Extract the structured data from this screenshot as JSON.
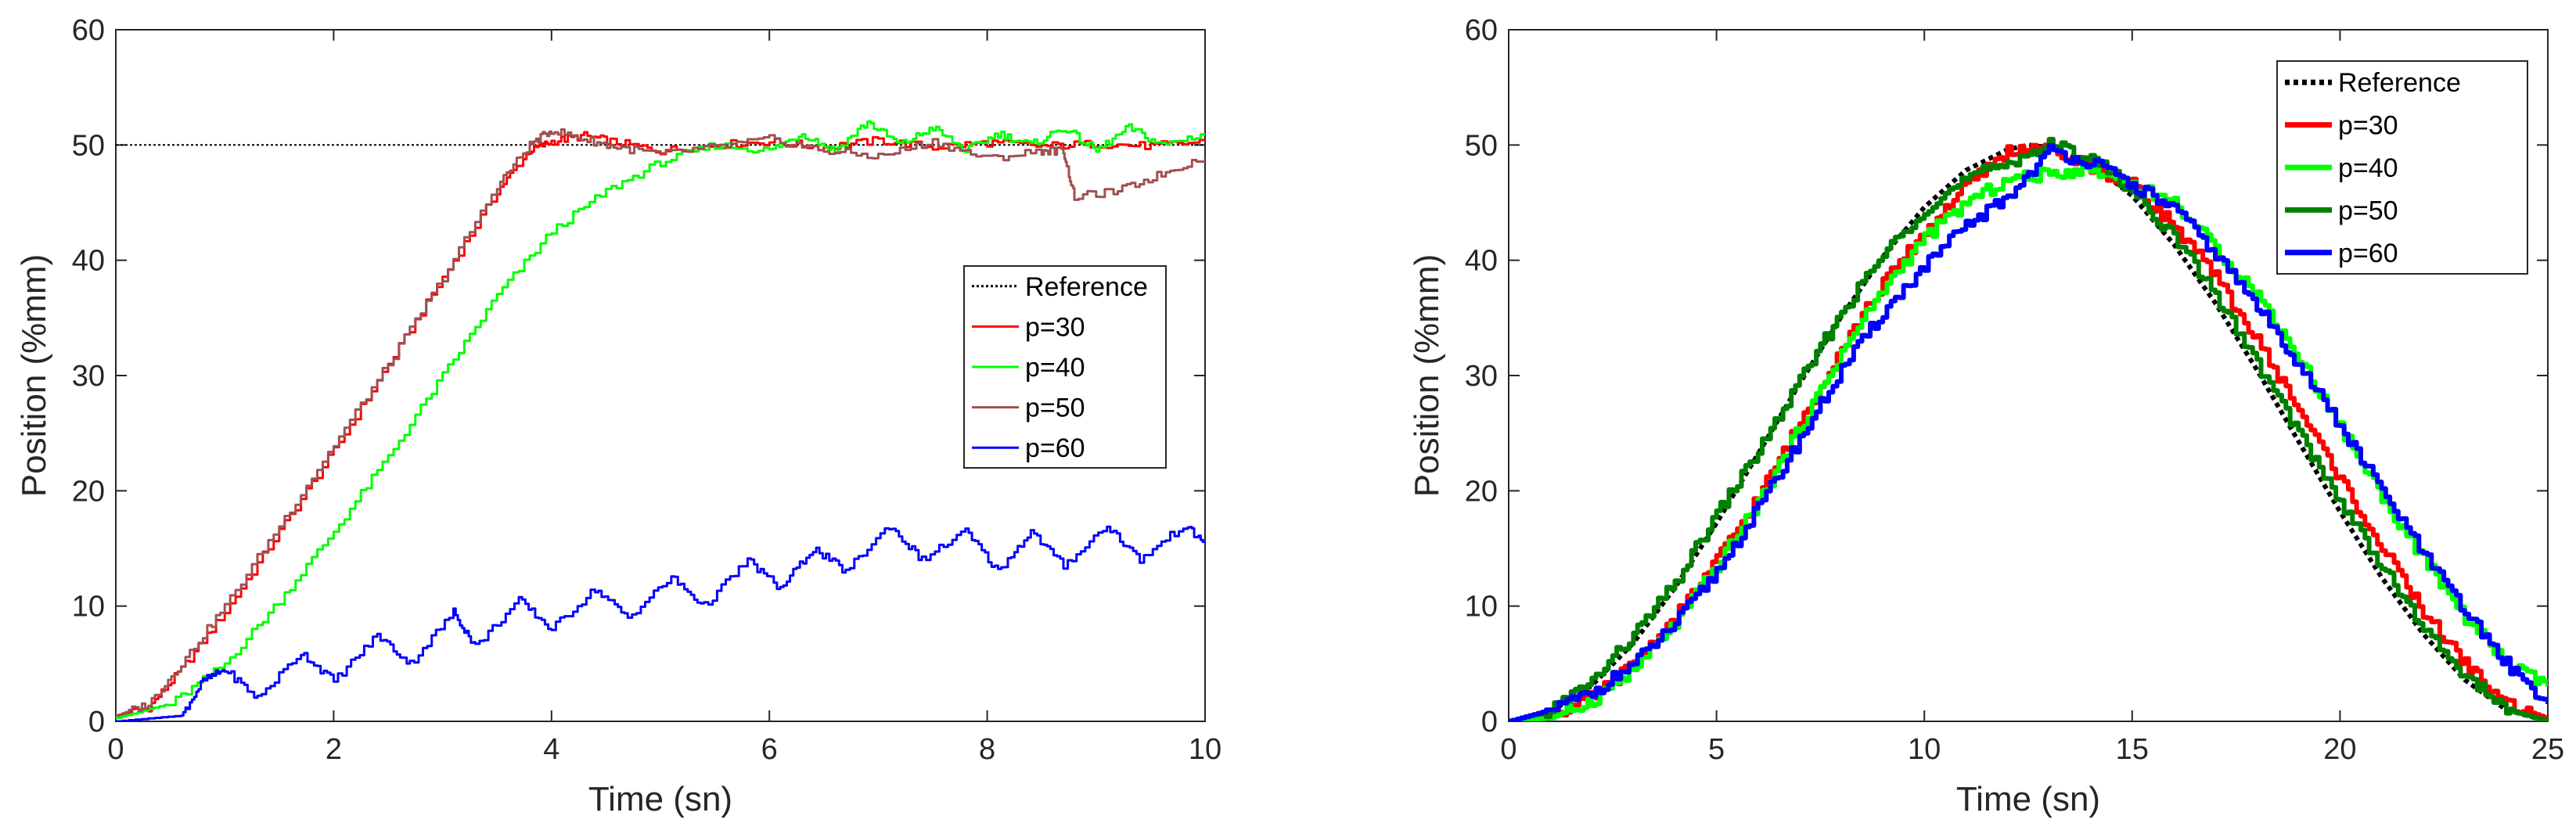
{
  "chart_data": [
    {
      "type": "line",
      "title": "",
      "xlabel": "Time (sn)",
      "ylabel": "Position (%mm)",
      "xlim": [
        0,
        10
      ],
      "ylim": [
        0,
        60
      ],
      "xticks": [
        0,
        2,
        4,
        6,
        8,
        10
      ],
      "yticks": [
        0,
        10,
        20,
        30,
        40,
        50,
        60
      ],
      "legend_position": "center-right",
      "series": [
        {
          "name": "Reference",
          "color": "#000000",
          "style": "dotted",
          "x": [
            0,
            10
          ],
          "y": [
            50,
            50
          ]
        },
        {
          "name": "p=30",
          "color": "#ff0000",
          "style": "solid",
          "x": [
            0,
            0.3,
            0.6,
            1.0,
            1.5,
            2.0,
            2.5,
            3.0,
            3.5,
            3.8,
            4.0,
            4.3,
            4.6,
            5.0,
            5.5,
            6.0,
            6.5,
            7.0,
            7.5,
            8.0,
            8.5,
            9.0,
            9.5,
            10.0
          ],
          "y": [
            0.5,
            1.2,
            4.5,
            9.5,
            16.5,
            23.5,
            31,
            38.5,
            46,
            49.5,
            50.3,
            50.8,
            50.2,
            49.5,
            50.0,
            50.3,
            49.8,
            50.4,
            49.8,
            50.2,
            49.9,
            50.1,
            49.9,
            50.3
          ]
        },
        {
          "name": "p=40",
          "color": "#00ff00",
          "style": "solid",
          "x": [
            0,
            0.5,
            1.0,
            1.5,
            2.0,
            2.5,
            3.0,
            3.5,
            4.0,
            4.5,
            5.0,
            5.5,
            6.0,
            6.3,
            6.6,
            6.9,
            7.2,
            7.5,
            7.8,
            8.1,
            8.4,
            8.7,
            9.0,
            9.3,
            9.6,
            10.0
          ],
          "y": [
            0.3,
            1.5,
            5,
            10.5,
            16.5,
            23,
            30,
            37,
            42.5,
            46,
            48.5,
            50,
            49.5,
            51,
            49.5,
            52,
            50,
            51.5,
            49.5,
            51,
            50,
            51.5,
            49.5,
            51.5,
            50,
            51
          ]
        },
        {
          "name": "p=50",
          "color": "#a05050",
          "style": "solid",
          "x": [
            0,
            0.3,
            0.6,
            1.0,
            1.5,
            2.0,
            2.5,
            3.0,
            3.5,
            3.8,
            4.0,
            4.3,
            4.6,
            5.0,
            5.5,
            6.0,
            6.5,
            7.0,
            7.5,
            8.0,
            8.5,
            8.7,
            8.8,
            9.2,
            9.6,
            10.0
          ],
          "y": [
            0.5,
            1.5,
            5,
            10,
            17,
            24,
            31,
            38.5,
            46.5,
            50,
            51.3,
            50.5,
            49.8,
            49.2,
            49.8,
            50.5,
            49.5,
            49.0,
            50.3,
            48.8,
            49.5,
            49.5,
            45.5,
            46,
            47.5,
            49
          ]
        },
        {
          "name": "p=60",
          "color": "#0000ff",
          "style": "solid",
          "x": [
            0,
            0.6,
            0.8,
            1.0,
            1.3,
            1.7,
            2.0,
            2.4,
            2.7,
            3.1,
            3.3,
            3.7,
            4.0,
            4.4,
            4.7,
            5.1,
            5.4,
            5.8,
            6.1,
            6.4,
            6.7,
            7.1,
            7.4,
            7.8,
            8.1,
            8.4,
            8.7,
            9.1,
            9.4,
            9.8,
            10.0
          ],
          "y": [
            0,
            0.5,
            3.5,
            4.5,
            2,
            6,
            3.5,
            7.5,
            5,
            9.5,
            6.5,
            10.5,
            8,
            11.5,
            9,
            12.5,
            10,
            14,
            11.5,
            15,
            13,
            17,
            14,
            16.5,
            13,
            16.5,
            13.5,
            17,
            14,
            17,
            15.5
          ]
        }
      ]
    },
    {
      "type": "line",
      "title": "",
      "xlabel": "Time (sn)",
      "ylabel": "Position (%mm)",
      "xlim": [
        0,
        25
      ],
      "ylim": [
        0,
        60
      ],
      "xticks": [
        0,
        5,
        10,
        15,
        20,
        25
      ],
      "yticks": [
        0,
        10,
        20,
        30,
        40,
        50,
        60
      ],
      "legend_position": "top-right",
      "series": [
        {
          "name": "Reference",
          "color": "#000000",
          "style": "dotted",
          "x": [
            0,
            1,
            2,
            3,
            4,
            5,
            6,
            7,
            8,
            9,
            10,
            11,
            12,
            12.5,
            13,
            14,
            15,
            16,
            17,
            18,
            19,
            20,
            21,
            22,
            23,
            24,
            25
          ],
          "y": [
            0,
            0.8,
            3.1,
            6.8,
            11.6,
            17.2,
            23.2,
            29.3,
            35.1,
            40.3,
            44.6,
            47.8,
            49.6,
            50,
            49.8,
            48.4,
            45.6,
            41.4,
            36.3,
            30.5,
            24.3,
            18.2,
            12.5,
            7.6,
            3.6,
            1.0,
            0
          ]
        },
        {
          "name": "p=30",
          "color": "#ff0000",
          "style": "solid",
          "x": [
            0,
            1,
            2,
            3,
            4,
            5,
            6,
            7,
            8,
            9,
            10,
            11,
            12,
            13,
            14,
            15,
            16,
            17,
            18,
            19,
            20,
            21,
            22,
            23,
            24,
            25
          ],
          "y": [
            0,
            0.5,
            2,
            5,
            9,
            14,
            19.5,
            26,
            32.5,
            38,
            42.5,
            46.5,
            49.5,
            49.5,
            48,
            46.5,
            43,
            38.5,
            33,
            27,
            21,
            15,
            9.5,
            5,
            1.5,
            0.2
          ]
        },
        {
          "name": "p=40",
          "color": "#00ff00",
          "style": "solid",
          "x": [
            0,
            1,
            2,
            3,
            4,
            5,
            6,
            7,
            8,
            9,
            10,
            11,
            12,
            13,
            14,
            15,
            16,
            17,
            18,
            19,
            20,
            21,
            22,
            23,
            24,
            25
          ],
          "y": [
            0,
            0.3,
            1.8,
            4.5,
            8.5,
            13.5,
            19,
            25.5,
            32,
            37.5,
            42,
            45,
            47,
            47.5,
            48,
            46.5,
            45,
            41,
            37,
            31.5,
            25.5,
            19.5,
            14,
            9,
            5,
            3
          ]
        },
        {
          "name": "p=50",
          "color": "#008000",
          "style": "solid",
          "x": [
            0,
            1,
            2,
            3,
            4,
            5,
            6,
            7,
            8,
            9,
            10,
            11,
            12,
            13,
            14,
            15,
            16,
            17,
            18,
            19,
            20,
            21,
            22,
            23,
            24,
            25
          ],
          "y": [
            0,
            1,
            3.5,
            7.5,
            12,
            18,
            23.5,
            29.5,
            35.5,
            40.5,
            44.5,
            47,
            48.5,
            50,
            49,
            46,
            42,
            37,
            31,
            25,
            19,
            13.5,
            8,
            4,
            1,
            0
          ]
        },
        {
          "name": "p=60",
          "color": "#0000ff",
          "style": "solid",
          "x": [
            0,
            1,
            2,
            3,
            4,
            5,
            6,
            7,
            8,
            9,
            10,
            11,
            12,
            13,
            14,
            15,
            16,
            17,
            18,
            19,
            20,
            21,
            22,
            23,
            24,
            25
          ],
          "y": [
            0,
            1,
            2.5,
            5,
            8.5,
            13,
            18.5,
            24.5,
            30.5,
            35.5,
            39.5,
            43,
            45.5,
            49.5,
            48.5,
            46.5,
            44.5,
            40.5,
            36,
            31,
            25.5,
            20,
            14.5,
            9.5,
            5,
            1.5
          ]
        }
      ]
    }
  ]
}
